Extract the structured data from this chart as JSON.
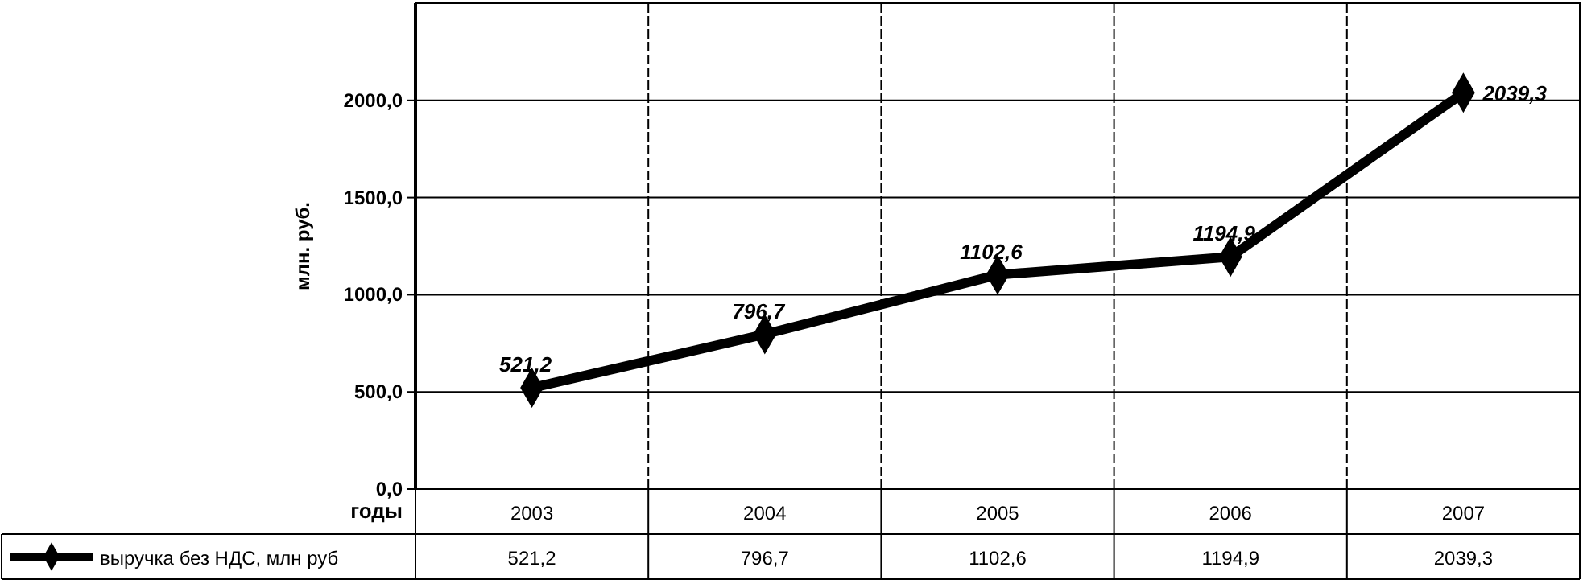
{
  "chart_data": {
    "type": "line",
    "ylabel": "млн. руб.",
    "xlabel": "годы",
    "categories": [
      "2003",
      "2004",
      "2005",
      "2006",
      "2007"
    ],
    "series": [
      {
        "name": "выручка без НДС, млн руб",
        "color": "#000000",
        "values": [
          521.2,
          796.7,
          1102.6,
          1194.9,
          2039.3
        ],
        "value_labels": [
          "521,2",
          "796,7",
          "1102,6",
          "1194,9",
          "2039,3"
        ]
      }
    ],
    "ylim": [
      0,
      2500
    ],
    "yticks": [
      {
        "value": 0,
        "label": "0,0"
      },
      {
        "value": 500,
        "label": "500,0"
      },
      {
        "value": 1000,
        "label": "1000,0"
      },
      {
        "value": 1500,
        "label": "1500,0"
      },
      {
        "value": 2000,
        "label": "2000,0"
      }
    ],
    "grid": true,
    "legend": "bottom",
    "marker": "diamond",
    "line_style": "solid"
  }
}
